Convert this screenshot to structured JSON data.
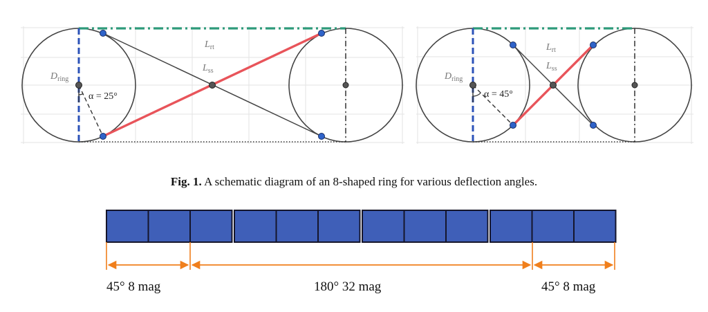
{
  "figure": {
    "left_panel": {
      "d_label_main": "D",
      "d_label_sub": "ring",
      "alpha_label": "α = 25°",
      "lrt_main": "L",
      "lrt_sub": "rt",
      "lss_main": "L",
      "lss_sub": "ss"
    },
    "right_panel": {
      "d_label_main": "D",
      "d_label_sub": "ring",
      "alpha_label": "α = 45°",
      "lrt_main": "L",
      "lrt_sub": "rt",
      "lss_main": "L",
      "lss_sub": "ss"
    },
    "colors": {
      "blue_dashed": "#2b52b8",
      "green_dashdot": "#2e9a7a",
      "red_segment": "#e8545a",
      "dot_blue": "#2f63c9",
      "magnet_fill": "#3f5fb8",
      "arrow_orange": "#f07f1c"
    }
  },
  "caption": {
    "label": "Fig. 1.",
    "text": " A schematic diagram of an 8-shaped ring for various deflection angles."
  },
  "magnets": {
    "groups": [
      3,
      3,
      3,
      3
    ],
    "spans": [
      {
        "label": "45° 8 mag"
      },
      {
        "label": "180° 32 mag"
      },
      {
        "label": "45° 8 mag"
      }
    ]
  }
}
